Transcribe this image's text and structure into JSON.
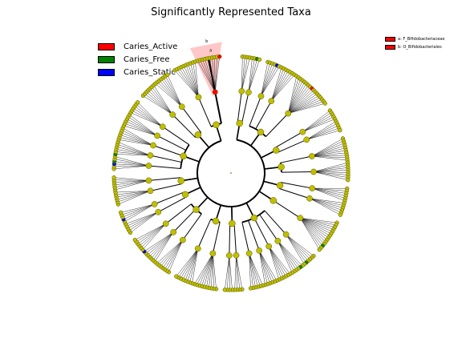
{
  "chart_data": {
    "type": "cladogram",
    "title": "Significantly Represented Taxa",
    "legend": {
      "placement": "top-left",
      "entries": [
        {
          "label": "Caries_Active",
          "color": "#ff0000"
        },
        {
          "label": "Caries_Free",
          "color": "#008000"
        },
        {
          "label": "Caries_Static",
          "color": "#0000ff"
        }
      ]
    },
    "key": {
      "placement": "top-right",
      "entries": [
        {
          "label": "a: F_Bifidobacteriaceae",
          "color": "#ff0000"
        },
        {
          "label": "b: O_Bifidobacteriales",
          "color": "#ff0000"
        }
      ]
    },
    "highlight": {
      "labels": [
        "a",
        "b"
      ],
      "color": "#ff0000"
    },
    "colors": {
      "node": "#bfbf00",
      "node_edge": "#555500",
      "edge": "#000000"
    },
    "clades": [
      {
        "leaves": 8,
        "children": [
          4,
          4
        ]
      },
      {
        "leaves": 30,
        "children": [
          6,
          7,
          17
        ]
      },
      {
        "leaves": 10,
        "children": [
          5,
          5
        ]
      },
      {
        "leaves": 18,
        "children": [
          10,
          8
        ]
      },
      {
        "leaves": 12,
        "children": [
          6,
          6
        ]
      },
      {
        "leaves": 14,
        "children": [
          14
        ]
      },
      {
        "leaves": 30,
        "children": [
          6,
          6,
          6,
          6,
          6
        ]
      },
      {
        "leaves": 8,
        "children": [
          4,
          4
        ]
      },
      {
        "leaves": 18,
        "children": [
          10,
          8
        ]
      },
      {
        "leaves": 20,
        "children": [
          7,
          7,
          6
        ]
      },
      {
        "leaves": 10,
        "children": [
          5,
          5
        ]
      },
      {
        "leaves": 12,
        "children": [
          6,
          6
        ]
      },
      {
        "leaves": 30,
        "children": [
          6,
          6,
          6,
          6,
          6
        ]
      },
      {
        "leaves": 14,
        "children": [
          7,
          7
        ]
      },
      {
        "leaves": 20,
        "children": [
          10,
          10
        ]
      }
    ],
    "highlighted_clade": 14
  }
}
